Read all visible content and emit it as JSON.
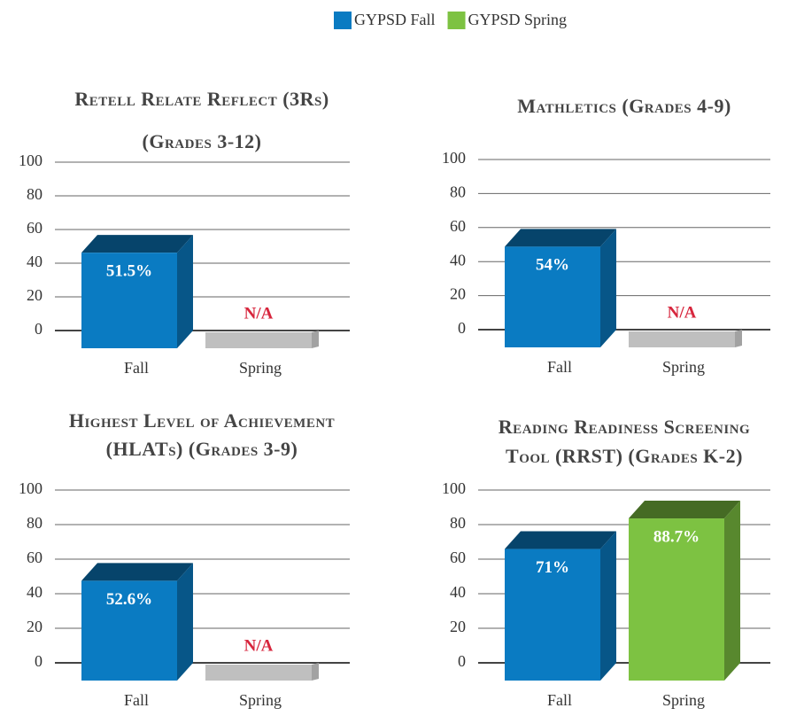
{
  "legend": [
    {
      "name": "GYPSD Fall",
      "color": "#0a7bc2"
    },
    {
      "name": "GYPSD Spring",
      "color": "#7dc242"
    }
  ],
  "na_color": "#bfbfbf",
  "chart_data": [
    {
      "type": "bar3d",
      "title": [
        "Retell Relate Reflect (3Rs)",
        "(Grades 3-12)"
      ],
      "categories": [
        "Fall",
        "Spring"
      ],
      "values": [
        51.5,
        null
      ],
      "value_labels": [
        "51.5%",
        "N/A"
      ],
      "ylim": [
        0,
        100
      ],
      "yticks": [
        0,
        20,
        40,
        60,
        80,
        100
      ],
      "grid": true
    },
    {
      "type": "bar3d",
      "title": [
        "Mathletics (Grades 4-9)"
      ],
      "categories": [
        "Fall",
        "Spring"
      ],
      "values": [
        54,
        null
      ],
      "value_labels": [
        "54%",
        "N/A"
      ],
      "ylim": [
        0,
        100
      ],
      "yticks": [
        0,
        20,
        40,
        60,
        80,
        100
      ],
      "grid": true
    },
    {
      "type": "bar3d",
      "title": [
        "Highest Level of Achievement",
        "(HLATs) (Grades 3-9)"
      ],
      "categories": [
        "Fall",
        "Spring"
      ],
      "values": [
        52.6,
        null
      ],
      "value_labels": [
        "52.6%",
        "N/A"
      ],
      "ylim": [
        0,
        100
      ],
      "yticks": [
        0,
        20,
        40,
        60,
        80,
        100
      ],
      "grid": true
    },
    {
      "type": "bar3d",
      "title": [
        "Reading Readiness Screening",
        "Tool (RRST) (Grades K-2)"
      ],
      "categories": [
        "Fall",
        "Spring"
      ],
      "values": [
        71,
        88.7
      ],
      "value_labels": [
        "71%",
        "88.7%"
      ],
      "ylim": [
        0,
        100
      ],
      "yticks": [
        0,
        20,
        40,
        60,
        80,
        100
      ],
      "grid": true
    }
  ]
}
